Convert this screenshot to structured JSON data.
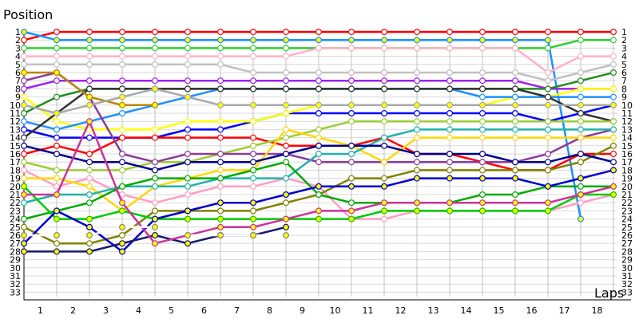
{
  "chart_data": {
    "type": "line",
    "title": "",
    "xlabel": "Laps",
    "ylabel": "Position",
    "x": [
      0,
      1,
      2,
      3,
      4,
      5,
      6,
      7,
      8,
      9,
      10,
      11,
      12,
      13,
      14,
      15,
      16,
      17,
      18
    ],
    "x_tick_labels": [
      "1",
      "2",
      "3",
      "4",
      "5",
      "6",
      "7",
      "8",
      "9",
      "10",
      "11",
      "12",
      "13",
      "14",
      "15",
      "16",
      "17",
      "18"
    ],
    "y_tick_labels": [
      "1",
      "2",
      "3",
      "4",
      "5",
      "6",
      "7",
      "8",
      "9",
      "10",
      "11",
      "12",
      "13",
      "14",
      "15",
      "16",
      "17",
      "18",
      "19",
      "20",
      "21",
      "22",
      "23",
      "24",
      "25",
      "26",
      "27",
      "28",
      "29",
      "30",
      "31",
      "32",
      "33"
    ],
    "right_tick_labels": [
      "1",
      "2",
      "3",
      "4",
      "5",
      "6",
      "7",
      "8",
      "9",
      "10",
      "11",
      "12",
      "13",
      "14",
      "15",
      "16",
      "17",
      "18",
      "19",
      "20",
      "21",
      "22",
      "23",
      "24",
      "25",
      "26",
      "27",
      "28",
      "29",
      "30",
      "31",
      "32",
      "33"
    ],
    "ylim": [
      1,
      33
    ],
    "y_inverted": true,
    "grid": true,
    "series": [
      {
        "color": "#ff0000",
        "marker": "#ffffff",
        "values": [
          2,
          1,
          1,
          1,
          1,
          1,
          1,
          1,
          1,
          1,
          1,
          1,
          1,
          1,
          1,
          1,
          1,
          1,
          1
        ]
      },
      {
        "color": "#1e90ff",
        "marker": "#ffff00",
        "values": [
          1,
          2,
          2,
          2,
          2,
          2,
          2,
          2,
          2,
          2,
          2,
          2,
          2,
          2,
          2,
          2,
          2,
          24,
          null
        ]
      },
      {
        "color": "#32cd32",
        "marker": "#ffffff",
        "values": [
          3,
          3,
          3,
          3,
          3,
          3,
          3,
          3,
          3,
          3,
          3,
          3,
          3,
          3,
          3,
          3,
          3,
          2,
          2
        ]
      },
      {
        "color": "#0000ff",
        "marker": "#ffffff",
        "values": [
          13,
          14,
          14,
          14,
          14,
          13,
          13,
          12,
          11,
          11,
          11,
          11,
          11,
          11,
          11,
          11,
          12,
          11,
          10
        ]
      },
      {
        "color": "#ffb0c8",
        "marker": "#ffffff",
        "values": [
          4,
          4,
          4,
          4,
          4,
          4,
          4,
          4,
          4,
          3,
          3,
          3,
          3,
          3,
          3,
          3,
          6,
          4,
          4
        ]
      },
      {
        "color": "#c0c0c0",
        "marker": "#ffffff",
        "values": [
          5,
          5,
          5,
          5,
          5,
          5,
          5,
          6,
          6,
          6,
          6,
          6,
          6,
          6,
          6,
          6,
          7,
          6,
          5
        ]
      },
      {
        "color": "#a020f0",
        "marker": "#ffffff",
        "values": [
          8,
          7,
          7,
          7,
          7,
          7,
          7,
          7,
          7,
          7,
          7,
          7,
          7,
          7,
          7,
          7,
          8,
          8,
          8
        ]
      },
      {
        "color": "#ffff00",
        "marker": "#ffffff",
        "values": [
          9,
          12,
          13,
          13,
          13,
          12,
          12,
          12,
          11,
          10,
          10,
          10,
          10,
          10,
          10,
          9,
          9,
          8,
          8
        ]
      },
      {
        "color": "#228b22",
        "marker": "#ffffff",
        "values": [
          11,
          9,
          8,
          8,
          8,
          8,
          8,
          8,
          8,
          8,
          8,
          8,
          8,
          8,
          8,
          8,
          8,
          7,
          6
        ]
      },
      {
        "color": "#1e90ff",
        "marker": "#ffffff",
        "values": [
          12,
          13,
          12,
          11,
          10,
          9,
          8,
          8,
          8,
          8,
          8,
          8,
          8,
          8,
          9,
          9,
          9,
          9,
          9
        ]
      },
      {
        "color": "#333333",
        "marker": "#ffffff",
        "values": [
          14,
          11,
          8,
          8,
          8,
          8,
          8,
          8,
          8,
          8,
          8,
          8,
          8,
          8,
          8,
          8,
          9,
          11,
          12
        ]
      },
      {
        "color": "#ff0000",
        "marker": "#ffffff",
        "values": [
          16,
          15,
          16,
          14,
          14,
          14,
          14,
          14,
          15,
          15,
          15,
          14,
          16,
          16,
          17,
          18,
          18,
          16,
          16
        ]
      },
      {
        "color": "#9acd32",
        "marker": "#ffffff",
        "values": [
          17,
          18,
          18,
          18,
          17,
          17,
          16,
          15,
          14,
          13,
          12,
          12,
          12,
          12,
          12,
          12,
          12,
          12,
          12
        ]
      },
      {
        "color": "#ff9ec4",
        "marker": "#ffffff",
        "values": [
          18,
          20,
          19,
          21,
          22,
          21,
          20,
          20,
          19,
          20,
          24,
          24,
          23,
          23,
          23,
          23,
          23,
          22,
          21
        ]
      },
      {
        "color": "#8b3a9b",
        "marker": "#ffffff",
        "values": [
          7,
          6,
          9,
          16,
          17,
          16,
          16,
          16,
          16,
          17,
          17,
          17,
          17,
          17,
          17,
          17,
          16,
          14,
          13
        ]
      },
      {
        "color": "#ffd700",
        "marker": "#ffffff",
        "values": [
          19,
          19,
          20,
          23,
          20,
          19,
          18,
          18,
          13,
          14,
          15,
          17,
          14,
          14,
          14,
          14,
          14,
          14,
          14
        ]
      },
      {
        "color": "#20b2aa",
        "marker": "#ffffff",
        "values": [
          22,
          21,
          21,
          20,
          20,
          20,
          19,
          19,
          19,
          16,
          16,
          14,
          13,
          13,
          13,
          13,
          13,
          13,
          13
        ]
      },
      {
        "color": "#808000",
        "marker": "#ffffff",
        "values": [
          25,
          27,
          27,
          26,
          23,
          23,
          23,
          23,
          22,
          21,
          19,
          19,
          18,
          18,
          18,
          18,
          18,
          17,
          15
        ]
      },
      {
        "color": "#00008b",
        "marker": "#ffffff",
        "values": [
          15,
          16,
          17,
          17,
          18,
          17,
          17,
          17,
          16,
          15,
          15,
          15,
          16,
          16,
          16,
          17,
          17,
          16,
          17
        ]
      },
      {
        "color": "#00aa00",
        "marker": "#ffffff",
        "values": [
          24,
          23,
          22,
          20,
          19,
          19,
          19,
          18,
          17,
          21,
          22,
          22,
          22,
          22,
          21,
          21,
          20,
          20,
          20
        ]
      },
      {
        "color": "#00cc00",
        "marker": "#ffff00",
        "values": [
          20,
          24,
          24,
          23,
          24,
          24,
          24,
          24,
          24,
          24,
          24,
          23,
          23,
          23,
          23,
          23,
          23,
          21,
          21
        ]
      },
      {
        "color": "#0000cc",
        "marker": "#ffff00",
        "values": [
          27,
          23,
          25,
          28,
          24,
          23,
          22,
          22,
          21,
          20,
          20,
          20,
          19,
          19,
          19,
          19,
          20,
          19,
          18
        ]
      },
      {
        "color": "#191970",
        "marker": "#ffff00",
        "values": [
          28,
          28,
          28,
          27,
          26,
          27,
          26,
          26,
          25,
          null,
          null,
          null,
          null,
          null,
          null,
          null,
          null,
          null,
          null
        ]
      },
      {
        "color": "#b8860b",
        "marker": "#ffff00",
        "values": [
          6,
          6,
          9,
          10,
          10,
          null,
          null,
          null,
          null,
          null,
          null,
          null,
          null,
          null,
          null,
          null,
          null,
          null,
          null
        ]
      },
      {
        "color": "#a9a9a9",
        "marker": "#ffff00",
        "values": [
          10,
          11,
          10,
          9,
          8,
          9,
          10,
          10,
          10,
          10,
          10,
          10,
          10,
          10,
          10,
          10,
          10,
          10,
          10
        ]
      },
      {
        "color": "#cc3399",
        "marker": "#ffff00",
        "values": [
          21,
          21,
          12,
          22,
          27,
          26,
          25,
          25,
          24,
          23,
          23,
          22,
          22,
          22,
          22,
          22,
          22,
          21,
          20
        ]
      },
      {
        "color": "#ffffff",
        "marker": "#ffff00",
        "values": [
          26,
          26,
          26,
          25,
          25,
          26,
          26,
          26,
          26,
          null,
          null,
          null,
          null,
          null,
          null,
          null,
          null,
          null,
          null
        ]
      }
    ]
  }
}
